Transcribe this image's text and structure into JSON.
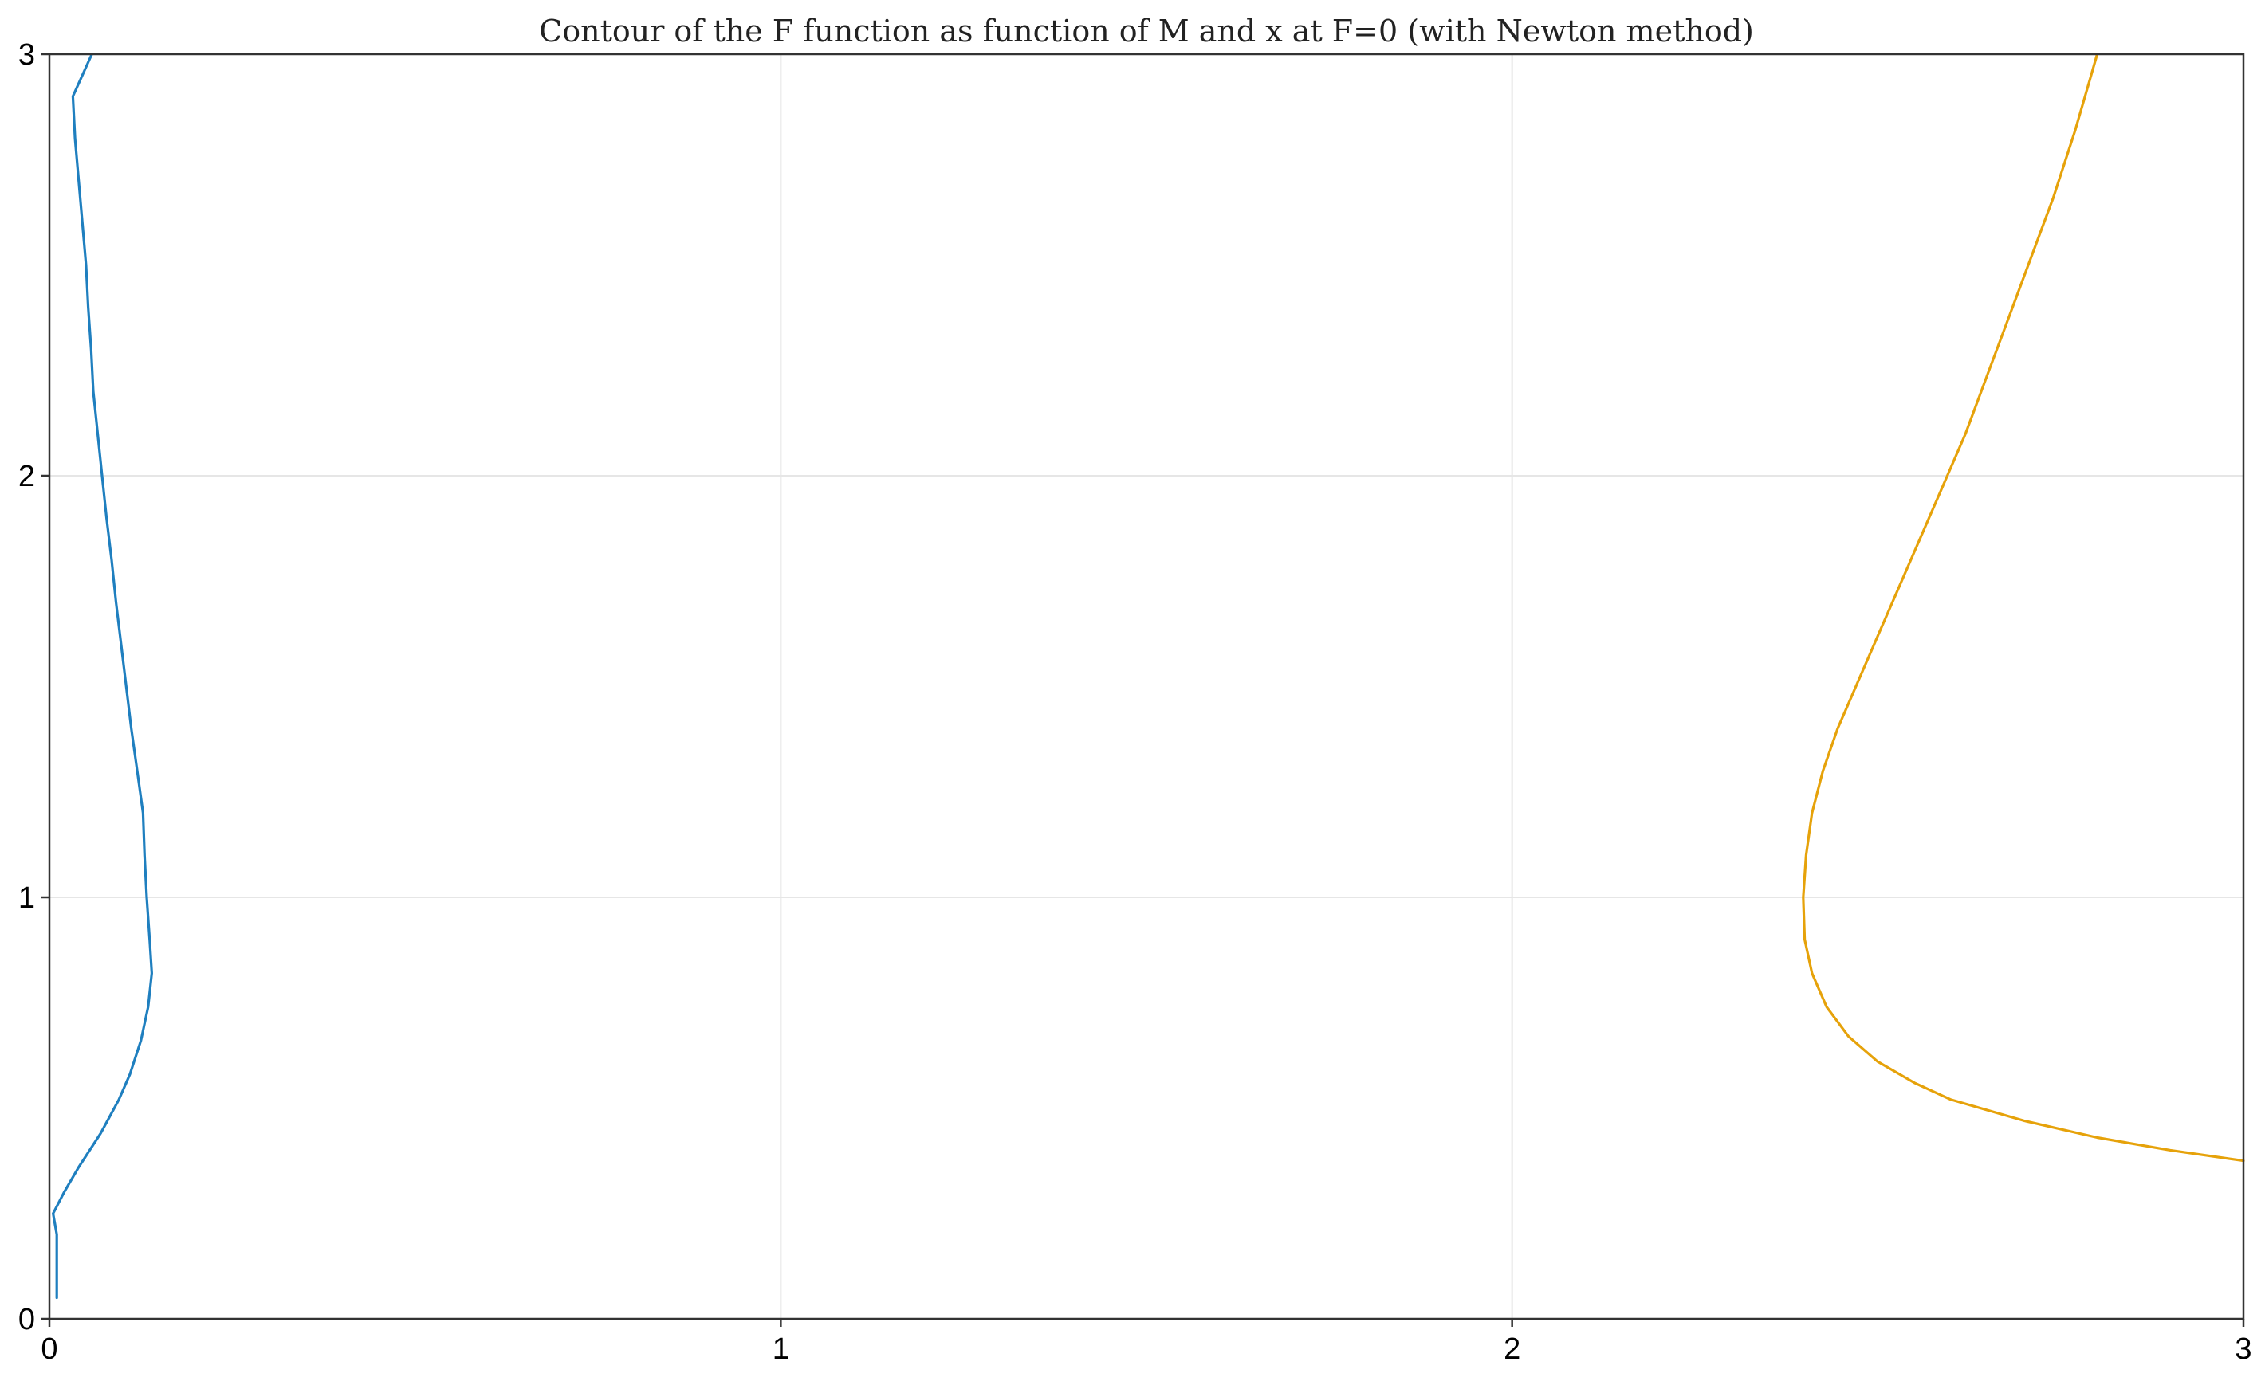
{
  "chart_data": {
    "type": "line",
    "title": "Contour of the F function as function of M and x at F=0 (with Newton method)",
    "xlabel": "",
    "ylabel": "",
    "xlim": [
      0,
      3
    ],
    "ylim": [
      0,
      3
    ],
    "grid": true,
    "x_ticks": [
      "0",
      "1",
      "2",
      "3"
    ],
    "y_ticks": [
      "0",
      "1",
      "2",
      "3"
    ],
    "x_tick_values": [
      0,
      1,
      2,
      3
    ],
    "y_tick_values": [
      0,
      1,
      2,
      3
    ],
    "series": [
      {
        "color": "#1f7fbf",
        "points": [
          [
            0.01,
            0.05
          ],
          [
            0.01,
            0.2
          ],
          [
            0.005,
            0.25
          ],
          [
            0.02,
            0.3
          ],
          [
            0.04,
            0.36
          ],
          [
            0.07,
            0.44
          ],
          [
            0.095,
            0.52
          ],
          [
            0.11,
            0.58
          ],
          [
            0.125,
            0.66
          ],
          [
            0.135,
            0.74
          ],
          [
            0.14,
            0.82
          ],
          [
            0.137,
            0.9
          ],
          [
            0.133,
            1.0
          ],
          [
            0.13,
            1.1
          ],
          [
            0.128,
            1.2
          ],
          [
            0.12,
            1.3
          ],
          [
            0.112,
            1.4
          ],
          [
            0.105,
            1.5
          ],
          [
            0.098,
            1.6
          ],
          [
            0.091,
            1.7
          ],
          [
            0.085,
            1.8
          ],
          [
            0.078,
            1.9
          ],
          [
            0.072,
            2.0
          ],
          [
            0.066,
            2.1
          ],
          [
            0.06,
            2.2
          ],
          [
            0.057,
            2.3
          ],
          [
            0.053,
            2.4
          ],
          [
            0.05,
            2.5
          ],
          [
            0.045,
            2.6
          ],
          [
            0.04,
            2.7
          ],
          [
            0.035,
            2.8
          ],
          [
            0.032,
            2.9
          ],
          [
            0.058,
            3.0
          ]
        ]
      },
      {
        "color": "#e6a20a",
        "points": [
          [
            3.0,
            0.375
          ],
          [
            2.9,
            0.4
          ],
          [
            2.8,
            0.43
          ],
          [
            2.7,
            0.47
          ],
          [
            2.6,
            0.52
          ],
          [
            2.55,
            0.56
          ],
          [
            2.5,
            0.61
          ],
          [
            2.46,
            0.67
          ],
          [
            2.43,
            0.74
          ],
          [
            2.41,
            0.82
          ],
          [
            2.4,
            0.9
          ],
          [
            2.398,
            1.0
          ],
          [
            2.402,
            1.1
          ],
          [
            2.41,
            1.2
          ],
          [
            2.425,
            1.3
          ],
          [
            2.445,
            1.4
          ],
          [
            2.47,
            1.5
          ],
          [
            2.5,
            1.62
          ],
          [
            2.53,
            1.74
          ],
          [
            2.56,
            1.86
          ],
          [
            2.59,
            1.98
          ],
          [
            2.62,
            2.1
          ],
          [
            2.65,
            2.24
          ],
          [
            2.68,
            2.38
          ],
          [
            2.71,
            2.52
          ],
          [
            2.74,
            2.66
          ],
          [
            2.77,
            2.82
          ],
          [
            2.79,
            2.94
          ],
          [
            2.8,
            3.0
          ]
        ]
      }
    ]
  }
}
